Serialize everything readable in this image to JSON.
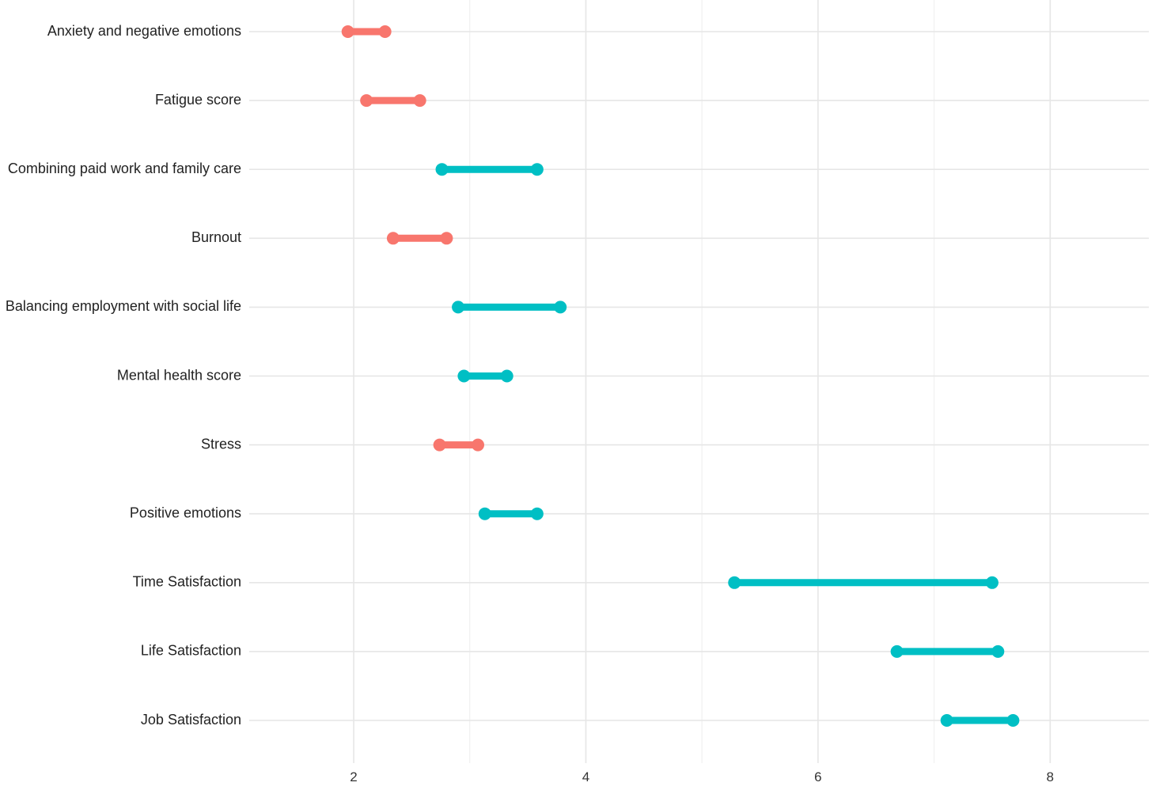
{
  "chart_data": {
    "type": "dumbbell",
    "title": "",
    "xlabel": "",
    "ylabel": "",
    "xlim": [
      1.1,
      8.85
    ],
    "x_ticks": [
      2,
      4,
      6,
      8
    ],
    "x_minor_ticks": [
      3,
      5,
      7
    ],
    "grid": true,
    "legend": "none",
    "colors": {
      "negative": "#F8766D",
      "positive": "#00BFC4"
    },
    "categories": [
      {
        "label": "Anxiety and negative emotions",
        "start": 1.95,
        "end": 2.27,
        "group": "negative"
      },
      {
        "label": "Fatigue score",
        "start": 2.11,
        "end": 2.57,
        "group": "negative"
      },
      {
        "label": "Combining paid work and family care",
        "start": 2.76,
        "end": 3.58,
        "group": "positive"
      },
      {
        "label": "Burnout",
        "start": 2.34,
        "end": 2.8,
        "group": "negative"
      },
      {
        "label": "Balancing employment with social life",
        "start": 2.9,
        "end": 3.78,
        "group": "positive"
      },
      {
        "label": "Mental health score",
        "start": 2.95,
        "end": 3.32,
        "group": "positive"
      },
      {
        "label": "Stress",
        "start": 2.74,
        "end": 3.07,
        "group": "negative"
      },
      {
        "label": "Positive emotions",
        "start": 3.13,
        "end": 3.58,
        "group": "positive"
      },
      {
        "label": "Time Satisfaction",
        "start": 5.28,
        "end": 7.5,
        "group": "positive"
      },
      {
        "label": "Life Satisfaction",
        "start": 6.68,
        "end": 7.55,
        "group": "positive"
      },
      {
        "label": "Job Satisfaction",
        "start": 7.11,
        "end": 7.68,
        "group": "positive"
      }
    ]
  }
}
